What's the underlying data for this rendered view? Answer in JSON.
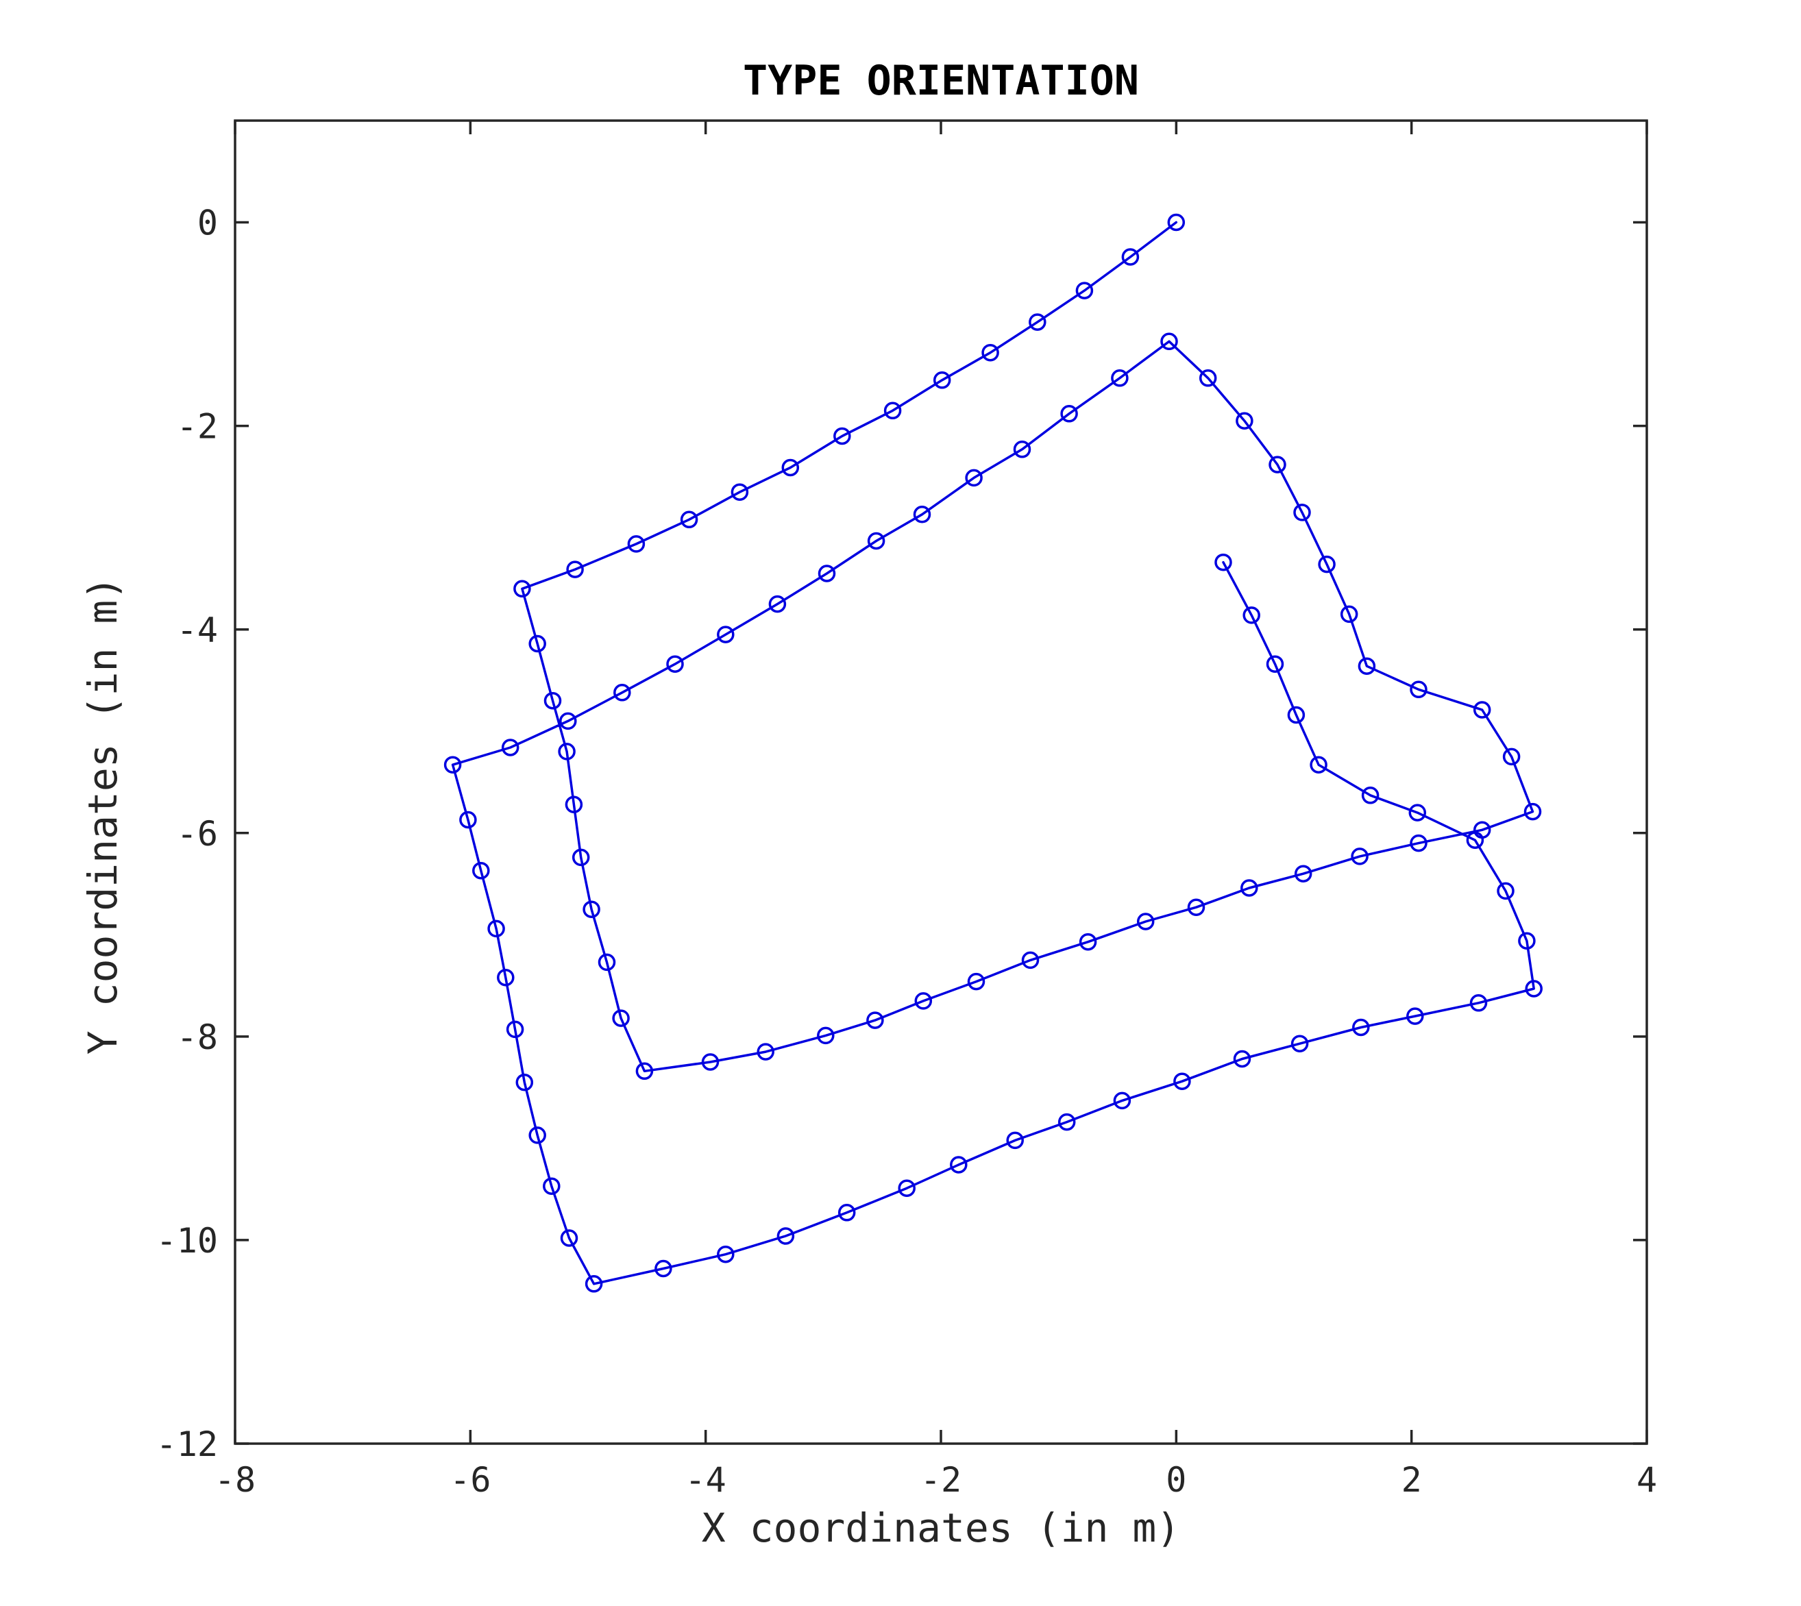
{
  "colors": {
    "series": "#0000e0",
    "axes": "#262626",
    "background": "#ffffff"
  },
  "chart_data": {
    "type": "line",
    "title": "TYPE ORIENTATION",
    "xlabel": "X coordinates (in m)",
    "ylabel": "Y coordinates (in m)",
    "xlim": [
      -8,
      4
    ],
    "ylim": [
      -12,
      1
    ],
    "xticks": [
      -8,
      -6,
      -4,
      -2,
      0,
      2,
      4
    ],
    "yticks": [
      -12,
      -10,
      -8,
      -6,
      -4,
      -2,
      0
    ],
    "xtick_labels": [
      "-8",
      "-6",
      "-4",
      "-2",
      "0",
      "2",
      "4"
    ],
    "ytick_labels": [
      "-12",
      "-10",
      "-8",
      "-6",
      "-4",
      "-2",
      "0"
    ],
    "grid": false,
    "legend": "none",
    "marker": "circle",
    "series": [
      {
        "x": [
          0.0,
          -0.39,
          -0.78,
          -1.18,
          -1.58,
          -1.99,
          -2.41,
          -2.84,
          -3.28,
          -3.71,
          -4.14,
          -4.59,
          -5.11,
          -5.56,
          -5.43,
          -5.3,
          -5.18,
          -5.12,
          -5.06,
          -4.97,
          -4.84,
          -4.72,
          -4.52,
          -3.96,
          -3.49,
          -2.98,
          -2.56,
          -2.15,
          -1.7,
          -1.24,
          -0.75,
          -0.26,
          0.17,
          0.62,
          1.08,
          1.56,
          2.06,
          2.6,
          3.03,
          2.85,
          2.6,
          2.06,
          1.62,
          1.47,
          1.28,
          1.07,
          0.86,
          0.58,
          0.27,
          -0.06,
          -0.48,
          -0.91,
          -1.31,
          -1.72,
          -2.16,
          -2.55,
          -2.97,
          -3.39,
          -3.83,
          -4.26,
          -4.71,
          -5.17,
          -5.66,
          -6.15,
          -6.02,
          -5.91,
          -5.78,
          -5.7,
          -5.62,
          -5.54,
          -5.43,
          -5.31,
          -5.16,
          -4.95,
          -4.36,
          -3.83,
          -3.32,
          -2.8,
          -2.29,
          -1.85,
          -1.37,
          -0.93,
          -0.46,
          0.05,
          0.56,
          1.05,
          1.57,
          2.03,
          2.57,
          3.04,
          2.98,
          2.8,
          2.54,
          2.05,
          1.65,
          1.21,
          1.02,
          0.84,
          0.64,
          0.4
        ],
        "y": [
          0.0,
          -0.34,
          -0.67,
          -0.98,
          -1.28,
          -1.55,
          -1.85,
          -2.1,
          -2.41,
          -2.65,
          -2.92,
          -3.16,
          -3.41,
          -3.6,
          -4.14,
          -4.7,
          -5.2,
          -5.72,
          -6.24,
          -6.75,
          -7.27,
          -7.82,
          -8.34,
          -8.25,
          -8.15,
          -7.99,
          -7.84,
          -7.65,
          -7.46,
          -7.25,
          -7.07,
          -6.87,
          -6.73,
          -6.54,
          -6.4,
          -6.23,
          -6.1,
          -5.97,
          -5.79,
          -5.25,
          -4.79,
          -4.59,
          -4.36,
          -3.85,
          -3.36,
          -2.85,
          -2.38,
          -1.95,
          -1.53,
          -1.17,
          -1.53,
          -1.88,
          -2.23,
          -2.51,
          -2.87,
          -3.13,
          -3.45,
          -3.75,
          -4.05,
          -4.34,
          -4.62,
          -4.9,
          -5.16,
          -5.33,
          -5.87,
          -6.37,
          -6.94,
          -7.42,
          -7.93,
          -8.45,
          -8.97,
          -9.47,
          -9.98,
          -10.43,
          -10.28,
          -10.14,
          -9.96,
          -9.73,
          -9.49,
          -9.26,
          -9.02,
          -8.84,
          -8.63,
          -8.44,
          -8.22,
          -8.07,
          -7.91,
          -7.8,
          -7.67,
          -7.53,
          -7.06,
          -6.57,
          -6.07,
          -5.8,
          -5.63,
          -5.33,
          -4.84,
          -4.34,
          -3.86,
          -3.34
        ]
      }
    ]
  }
}
